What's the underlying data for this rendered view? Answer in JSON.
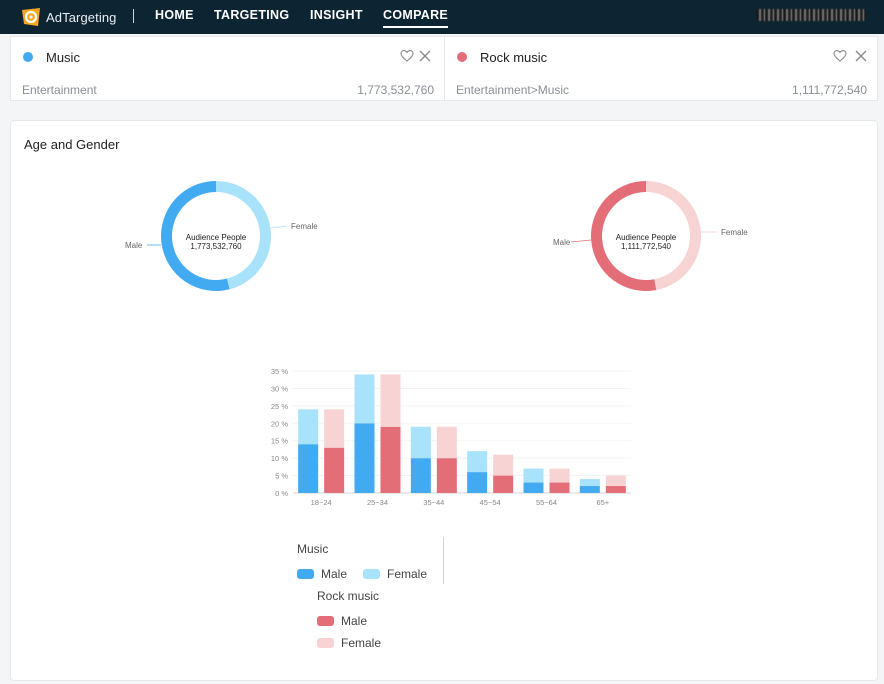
{
  "nav": {
    "brand": "AdTargeting",
    "items": [
      "HOME",
      "TARGETING",
      "INSIGHT",
      "COMPARE"
    ],
    "active": "COMPARE"
  },
  "compare": [
    {
      "name": "Music",
      "category": "Entertainment",
      "audience": "1,773,532,760",
      "color": "#42aaf0"
    },
    {
      "name": "Rock music",
      "category": "Entertainment>Music",
      "audience": "1,111,772,540",
      "color": "#e46e78"
    }
  ],
  "section": {
    "title": "Age and Gender"
  },
  "donuts": [
    {
      "center_label": "Audience People",
      "center_value": "1,773,532,760",
      "male_label": "Male",
      "female_label": "Female",
      "male_share": 0.54,
      "male_color": "#42aaf0",
      "female_color": "#a9e2fb"
    },
    {
      "center_label": "Audience People",
      "center_value": "1,111,772,540",
      "male_label": "Male",
      "female_label": "Female",
      "male_share": 0.53,
      "male_color": "#e46e78",
      "female_color": "#f7d3d4"
    }
  ],
  "chart_data": {
    "type": "bar",
    "stacked": true,
    "categories": [
      "18~24",
      "25~34",
      "35~44",
      "45~54",
      "55~64",
      "65+"
    ],
    "ylim": [
      0,
      35
    ],
    "yticks": [
      "0 %",
      "5 %",
      "10 %",
      "15 %",
      "20 %",
      "25 %",
      "30 %",
      "35 %"
    ],
    "series": [
      {
        "name": "Music Male",
        "group": "Music",
        "values": [
          14,
          20,
          10,
          6,
          3,
          2
        ],
        "color": "#42aaf0"
      },
      {
        "name": "Music Female",
        "group": "Music",
        "values": [
          10,
          14,
          9,
          6,
          4,
          2
        ],
        "color": "#a9e2fb"
      },
      {
        "name": "Rock music Male",
        "group": "Rock music",
        "values": [
          13,
          19,
          10,
          5,
          3,
          2
        ],
        "color": "#e46e78"
      },
      {
        "name": "Rock music Female",
        "group": "Rock music",
        "values": [
          11,
          15,
          9,
          6,
          4,
          3
        ],
        "color": "#f7d3d4"
      }
    ]
  },
  "legend": {
    "groups": [
      {
        "title": "Music",
        "items": [
          {
            "label": "Male",
            "color": "#42aaf0"
          },
          {
            "label": "Female",
            "color": "#a9e2fb"
          }
        ]
      },
      {
        "title": "Rock music",
        "items": [
          {
            "label": "Male",
            "color": "#e46e78"
          },
          {
            "label": "Female",
            "color": "#f7d3d4"
          }
        ]
      }
    ]
  }
}
